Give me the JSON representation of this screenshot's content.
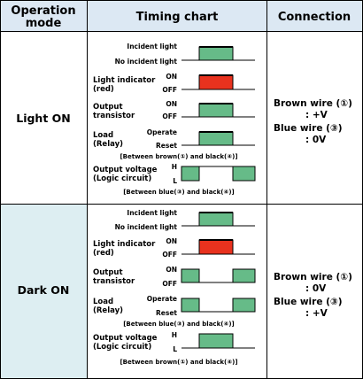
{
  "colors": {
    "header_bg": "#dce8f3",
    "dark_row_bg": "#ddeef2",
    "pulse_green": "#66bb88",
    "pulse_red": "#e8321e",
    "line": "#000000"
  },
  "header": {
    "operation_line1": "Operation",
    "operation_line2": "mode",
    "timing": "Timing chart",
    "connection": "Connection"
  },
  "light_on": {
    "mode": "Light ON",
    "incident": "Incident light",
    "no_incident": "No incident light",
    "indicator_line1": "Light indicator",
    "indicator_line2": "(red)",
    "on": "ON",
    "off": "OFF",
    "output_line1": "Output",
    "output_line2": "transistor",
    "load_line1": "Load",
    "load_line2": "(Relay)",
    "operate": "Operate",
    "reset": "Reset",
    "between_1": "[Between brown(①) and black(④)]",
    "voltage_line1": "Output voltage",
    "voltage_line2": "(Logic circuit)",
    "h": "H",
    "l": "L",
    "between_2": "[Between blue(③) and black(④)]",
    "brown_wire": "Brown wire (①)",
    "brown_value": ": +V",
    "blue_wire": "Blue wire (③)",
    "blue_value": ": 0V"
  },
  "dark_on": {
    "mode": "Dark ON",
    "incident": "Incident light",
    "no_incident": "No incident light",
    "indicator_line1": "Light indicator",
    "indicator_line2": "(red)",
    "on": "ON",
    "off": "OFF",
    "output_line1": "Output",
    "output_line2": "transistor",
    "load_line1": "Load",
    "load_line2": "(Relay)",
    "operate": "Operate",
    "reset": "Reset",
    "between_1": "[Between blue(③) and black(④)]",
    "voltage_line1": "Output voltage",
    "voltage_line2": "(Logic circuit)",
    "h": "H",
    "l": "L",
    "between_2": "[Between brown(①) and black(④)]",
    "brown_wire": "Brown wire (①)",
    "brown_value": ": 0V",
    "blue_wire": "Blue wire (③)",
    "blue_value": ": +V"
  }
}
